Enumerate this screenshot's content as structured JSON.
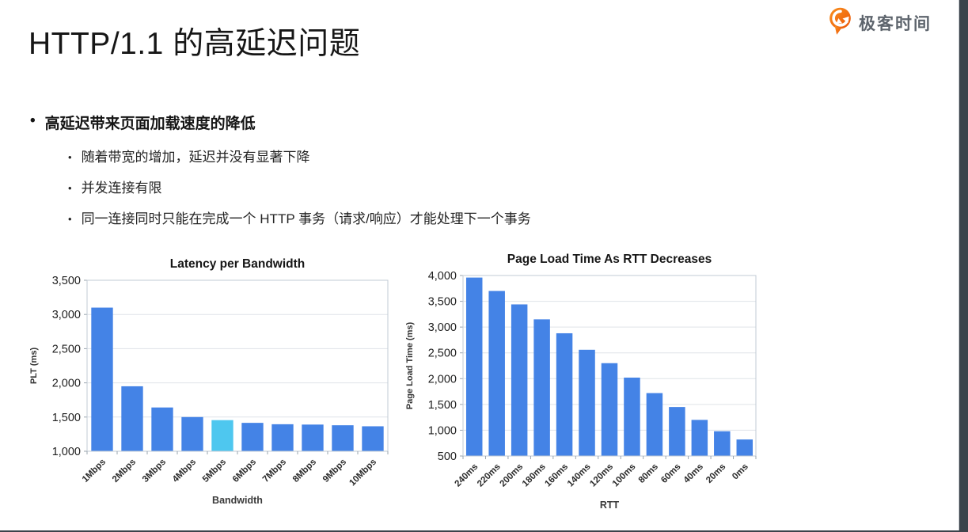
{
  "page": {
    "title": "HTTP/1.1 的高延迟问题"
  },
  "logo": {
    "text": "极客时间",
    "icon": "geektime-pin-icon",
    "brand_orange": "#F2680D",
    "text_color": "#5E656D"
  },
  "bullets": {
    "main": "高延迟带来页面加载速度的降低",
    "sub": [
      "随着带宽的增加，延迟并没有显著下降",
      "并发连接有限",
      "同一连接同时只能在完成一个 HTTP 事务（请求/响应）才能处理下一个事务"
    ]
  },
  "chart_data": [
    {
      "type": "bar",
      "title": "Latency per Bandwidth",
      "xlabel": "Bandwidth",
      "ylabel": "PLT (ms)",
      "categories": [
        "1Mbps",
        "2Mbps",
        "3Mbps",
        "4Mbps",
        "5Mbps",
        "6Mbps",
        "7Mbps",
        "8Mbps",
        "9Mbps",
        "10Mbps"
      ],
      "values": [
        3100,
        1950,
        1640,
        1500,
        1455,
        1415,
        1395,
        1390,
        1380,
        1365
      ],
      "ylim": [
        1000,
        3500
      ],
      "ytick_step": 500,
      "grid": true,
      "legend": "none",
      "bar_color": "#4483E6",
      "highlight_index": 4,
      "highlight_color": "#4EC7EF"
    },
    {
      "type": "bar",
      "title": "Page Load Time As RTT Decreases",
      "xlabel": "RTT",
      "ylabel": "Page Load Time (ms)",
      "categories": [
        "240ms",
        "220ms",
        "200ms",
        "180ms",
        "160ms",
        "140ms",
        "120ms",
        "100ms",
        "80ms",
        "60ms",
        "40ms",
        "20ms",
        "0ms"
      ],
      "values": [
        3960,
        3700,
        3440,
        3150,
        2880,
        2560,
        2300,
        2020,
        1720,
        1450,
        1200,
        980,
        820
      ],
      "ylim": [
        500,
        4000
      ],
      "ytick_step": 500,
      "grid": true,
      "legend": "none",
      "bar_color": "#4483E6",
      "highlight_index": null,
      "highlight_color": "#4EC7EF"
    }
  ],
  "colors": {
    "grid_line": "#DFE3E8",
    "plot_border": "#C2CBD4",
    "axis_text": "#1f1f1f",
    "side_strip": "#3B434B"
  }
}
